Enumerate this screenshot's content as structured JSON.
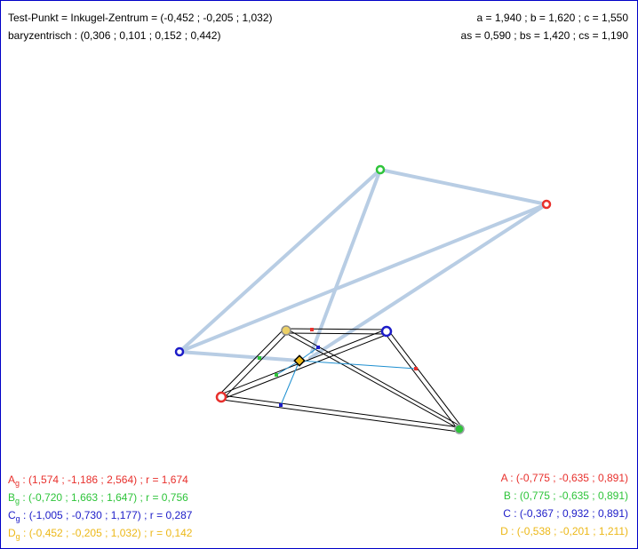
{
  "header": {
    "test_point": "Test-Punkt = Inkugel-Zentrum = (-0,452 ; -0,205 ; 1,032)",
    "barycentric": "baryzentrisch : (0,306 ; 0,101 ; 0,152 ; 0,442)",
    "sides": "a  = 1,940 ; b  = 1,620 ; c  = 1,550",
    "medians": "as = 0,590 ; bs = 1,420 ; cs = 1,190"
  },
  "gpoints": [
    {
      "letter": "A",
      "sub": "g",
      "text": " : (1,574 ; -1,186 ; 2,564) ; r = 1,674",
      "color": "#e8302c"
    },
    {
      "letter": "B",
      "sub": "g",
      "text": " : (-0,720 ; 1,663 ; 1,647) ; r = 0,756",
      "color": "#2ec43a"
    },
    {
      "letter": "C",
      "sub": "g",
      "text": " : (-1,005 ; -0,730 ; 1,177) ; r = 0,287",
      "color": "#1c1cc8"
    },
    {
      "letter": "D",
      "sub": "g",
      "text": " : (-0,452 ; -0,205 ; 1,032) ; r = 0,142",
      "color": "#ecb818"
    }
  ],
  "vertices": [
    {
      "text": "A : (-0,775 ; -0,635 ; 0,891)",
      "color": "#e8302c"
    },
    {
      "text": "B : (0,775 ; -0,635 ; 0,891)",
      "color": "#2ec43a"
    },
    {
      "text": "C : (-0,367 ; 0,932 ; 0,891)",
      "color": "#1c1cc8"
    },
    {
      "text": "D : (-0,538 ; -0,201 ; 1,211)",
      "color": "#ecb818"
    }
  ],
  "colors": {
    "frame": "#0000c8",
    "red": "#e8302c",
    "green": "#2ec43a",
    "blue": "#1c1cc8",
    "gold": "#ecb818",
    "projection_lines": "#b8cde4",
    "construction": "#1e8fd0"
  }
}
